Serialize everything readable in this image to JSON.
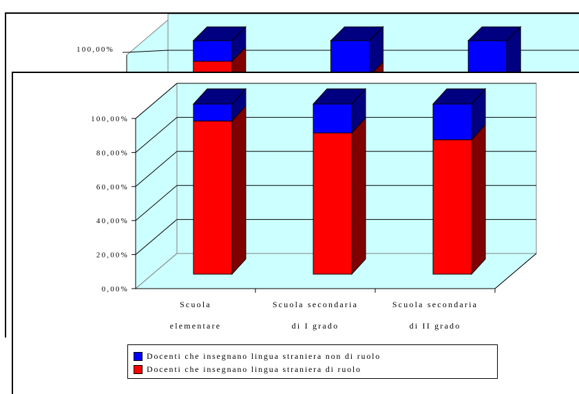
{
  "chart_data": [
    {
      "type": "bar",
      "stacked": true,
      "view": "3d",
      "categories": [
        [
          "Scuola",
          "elementare"
        ],
        [
          "Scuola secondaria",
          "di I grado"
        ],
        [
          "Scuola secondaria",
          "di II grado"
        ]
      ],
      "series": [
        {
          "name": "Docenti che insegnano lingua straniera di ruolo",
          "color": "#ff0000",
          "side_color": "#800000",
          "values": [
            90,
            83,
            79
          ]
        },
        {
          "name": "Docenti che insegnano lingua straniera non di ruolo",
          "color": "#0000ff",
          "side_color": "#000080",
          "values": [
            10,
            17,
            21
          ]
        }
      ],
      "ylim": [
        0,
        100
      ],
      "yticks": [
        "0,00%",
        "20,00%",
        "40,00%",
        "60,00%",
        "80,00%",
        "100,00%"
      ],
      "grid": true,
      "wall_color": "#ccffff",
      "legend_position": "bottom"
    },
    {
      "type": "bar",
      "stacked": true,
      "view": "3d",
      "partially_hidden": true,
      "series": [
        {
          "name": "Docenti che insegnano lingua straniera di ruolo",
          "color": "#ff0000",
          "values": [
            90,
            83,
            79
          ]
        },
        {
          "name": "Docenti che insegnano lingua straniera non di ruolo",
          "color": "#0000ff",
          "values": [
            10,
            17,
            21
          ]
        }
      ],
      "yticks": [
        "100,00%"
      ]
    }
  ],
  "legend": {
    "items": [
      {
        "label": "Docenti che insegnano lingua straniera non di ruolo",
        "color": "#0000ff"
      },
      {
        "label": "Docenti che insegnano lingua straniera di ruolo",
        "color": "#ff0000"
      }
    ]
  }
}
